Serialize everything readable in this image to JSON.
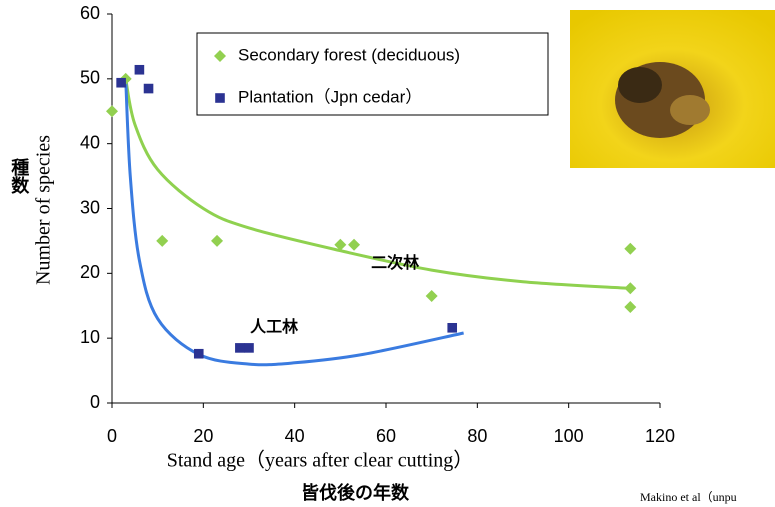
{
  "chart_data": {
    "type": "scatter",
    "xlabel": "Stand age（years after clear cutting）",
    "xlabel_jp": "皆伐後の年数",
    "ylabel": "Number of species",
    "ylabel_jp": "種数",
    "credit": "Makino et al（unpu",
    "xlim": [
      0,
      120
    ],
    "xticks": [
      0,
      20,
      40,
      60,
      80,
      100,
      120
    ],
    "ylim": [
      0,
      60
    ],
    "yticks": [
      0,
      10,
      20,
      30,
      40,
      50,
      60
    ],
    "series": [
      {
        "name": "Secondary forest (deciduous)",
        "color": "#92d050",
        "marker": "diamond",
        "x": [
          0,
          3,
          11,
          23,
          50,
          53,
          70,
          113.5,
          113.5,
          113.5
        ],
        "values": [
          45,
          50,
          25,
          25,
          24.4,
          24.4,
          16.5,
          23.8,
          17.7,
          14.8
        ]
      },
      {
        "name": "Plantation（Jpn cedar）",
        "color": "#2b3392",
        "marker": "square",
        "x": [
          2,
          6,
          8,
          19,
          28,
          30,
          74.5
        ],
        "values": [
          49.4,
          51.4,
          48.5,
          7.6,
          8.5,
          8.5,
          11.6
        ]
      }
    ],
    "trends": [
      {
        "color": "#8fd14f",
        "x": [
          3,
          5,
          10,
          20,
          30,
          50,
          70,
          90,
          113
        ],
        "values": [
          50,
          43,
          36,
          30,
          27,
          23.5,
          20.5,
          18.7,
          17.7
        ]
      },
      {
        "color": "#3a7be0",
        "x": [
          3,
          4,
          6,
          10,
          19,
          30,
          40,
          55,
          77
        ],
        "values": [
          50,
          35,
          22,
          13,
          7.5,
          6.0,
          6.2,
          7.5,
          10.8
        ]
      }
    ],
    "annotations": [
      {
        "text": "二次林",
        "x": 62,
        "y": 21.5
      },
      {
        "text": "人工林",
        "x": 35.5,
        "y": 11.6
      }
    ]
  }
}
